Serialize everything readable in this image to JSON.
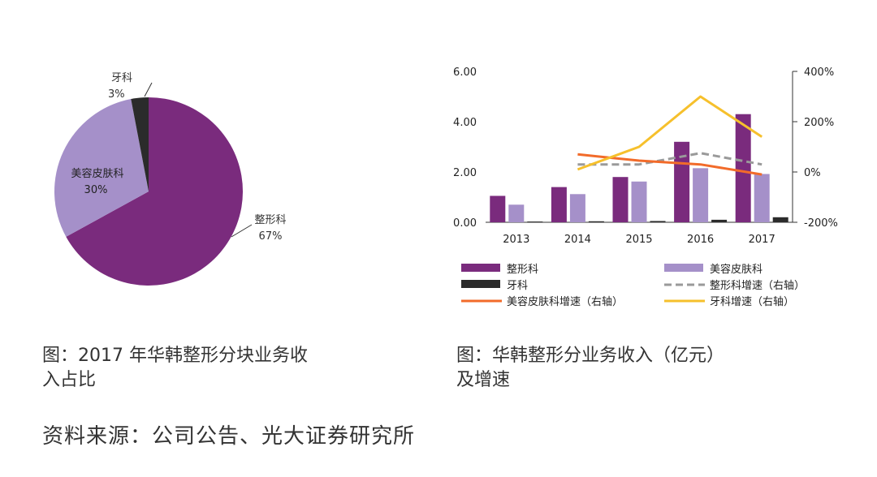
{
  "chart_data": [
    {
      "type": "pie",
      "slices": [
        {
          "label": "整形科",
          "value": 67,
          "pct_label": "67%",
          "color": "#7a2b7d"
        },
        {
          "label": "美容皮肤科",
          "value": 30,
          "pct_label": "30%",
          "color": "#a590c9"
        },
        {
          "label": "牙科",
          "value": 3,
          "pct_label": "3%",
          "color": "#2b2b2b"
        }
      ]
    },
    {
      "type": "bar",
      "categories": [
        "2013",
        "2014",
        "2015",
        "2016",
        "2017"
      ],
      "ylim": [
        0,
        6
      ],
      "yticks": [
        "0.00",
        "2.00",
        "4.00",
        "6.00"
      ],
      "y2lim": [
        -200,
        400
      ],
      "y2ticks": [
        "-200%",
        "0%",
        "200%",
        "400%"
      ],
      "bar_series": [
        {
          "name": "整形科",
          "color": "#7a2b7d",
          "values": [
            1.05,
            1.4,
            1.8,
            3.2,
            4.3
          ]
        },
        {
          "name": "美容皮肤科",
          "color": "#a590c9",
          "values": [
            0.7,
            1.12,
            1.62,
            2.15,
            1.92
          ]
        },
        {
          "name": "牙科",
          "color": "#2b2b2b",
          "values": [
            0.03,
            0.04,
            0.05,
            0.1,
            0.2
          ]
        }
      ],
      "line_series": [
        {
          "name": "整形科增速（右轴）",
          "color": "#9a9a9a",
          "dash": true,
          "values": [
            null,
            30,
            30,
            75,
            30
          ]
        },
        {
          "name": "美容皮肤科增速（右轴）",
          "color": "#f26b2a",
          "dash": false,
          "values": [
            null,
            70,
            45,
            30,
            -10
          ]
        },
        {
          "name": "牙科增速（右轴）",
          "color": "#f6c02c",
          "dash": false,
          "values": [
            null,
            10,
            100,
            300,
            140
          ]
        }
      ],
      "legend": [
        {
          "label": "整形科",
          "kind": "bar",
          "color": "#7a2b7d"
        },
        {
          "label": "美容皮肤科",
          "kind": "bar",
          "color": "#a590c9"
        },
        {
          "label": "牙科",
          "kind": "bar",
          "color": "#2b2b2b"
        },
        {
          "label": "整形科增速（右轴）",
          "kind": "dash",
          "color": "#9a9a9a"
        },
        {
          "label": "美容皮肤科增速（右轴）",
          "kind": "line",
          "color": "#f26b2a"
        },
        {
          "label": "牙科增速（右轴）",
          "kind": "line",
          "color": "#f6c02c"
        }
      ]
    }
  ],
  "captions": {
    "left_line1": "图：2017 年华韩整形分块业务收",
    "left_line2": "入占比",
    "right_line1": "图：华韩整形分业务收入（亿元）",
    "right_line2": "及增速"
  },
  "source": "资料来源：公司公告、光大证券研究所"
}
